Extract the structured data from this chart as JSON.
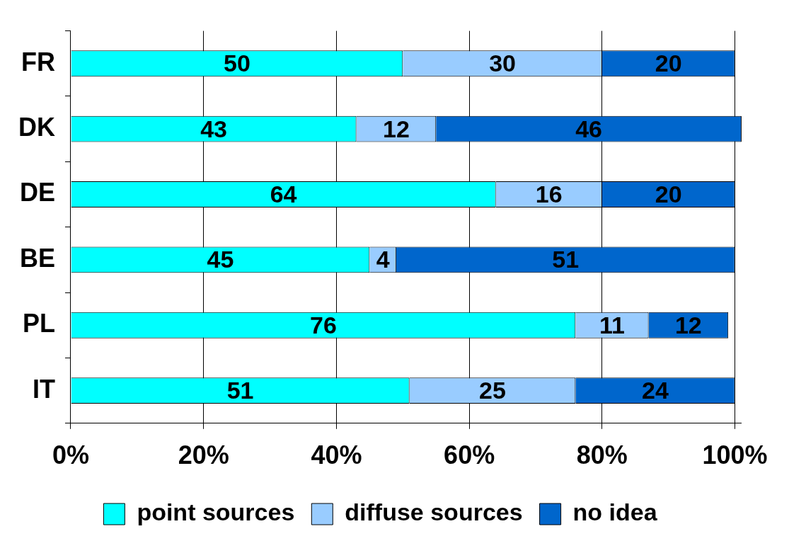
{
  "chart_data": {
    "type": "bar",
    "orientation": "horizontal",
    "stacked": true,
    "categories": [
      "FR",
      "DK",
      "DE",
      "BE",
      "PL",
      "IT"
    ],
    "series": [
      {
        "name": "point sources",
        "color": "#00ffff",
        "values": [
          50,
          43,
          64,
          45,
          76,
          51
        ]
      },
      {
        "name": "diffuse sources",
        "color": "#99ccff",
        "values": [
          30,
          12,
          16,
          4,
          11,
          25
        ]
      },
      {
        "name": "no idea",
        "color": "#0066cc",
        "values": [
          20,
          46,
          20,
          51,
          12,
          24
        ]
      }
    ],
    "xlim": [
      0,
      101
    ],
    "xticks": [
      {
        "value": 0,
        "label": "0%"
      },
      {
        "value": 20,
        "label": "20%"
      },
      {
        "value": 40,
        "label": "40%"
      },
      {
        "value": 60,
        "label": "60%"
      },
      {
        "value": 80,
        "label": "80%"
      },
      {
        "value": 100,
        "label": "100%"
      }
    ],
    "grid": "x",
    "legend": "bottom",
    "data_labels": true
  }
}
